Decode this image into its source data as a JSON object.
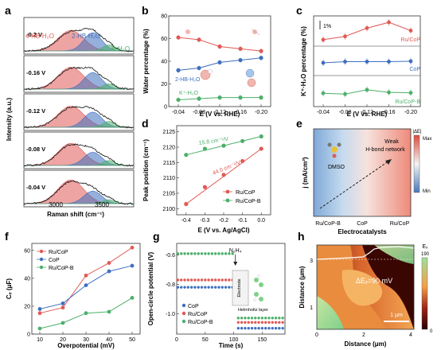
{
  "panels": {
    "a": "a",
    "b": "b",
    "c": "c",
    "d": "d",
    "e": "e",
    "f": "f",
    "g": "g",
    "h": "h"
  },
  "colors": {
    "red": "#e05a55",
    "blue": "#3f6fbf",
    "green": "#4caf6a",
    "dark": "#222222"
  },
  "chart_data": [
    {
      "panel": "a",
      "type": "area",
      "xlabel": "Raman shift (cm⁻¹)",
      "ylabel": "Intensity (a.u.)",
      "xticks": [
        "3000",
        "3500"
      ],
      "xlim": [
        2750,
        3850
      ],
      "peak_labels": [
        "4-HB-H₂O",
        "2-HB-H₂O",
        "K-H₂O"
      ],
      "peak_centers": [
        3220,
        3440,
        3600
      ],
      "spectra": [
        {
          "label": "-0.2 V",
          "amps": [
            0.62,
            0.55,
            0.18
          ]
        },
        {
          "label": "-0.16 V",
          "amps": [
            0.66,
            0.5,
            0.16
          ]
        },
        {
          "label": "-0.12 V",
          "amps": [
            0.64,
            0.46,
            0.18
          ]
        },
        {
          "label": "-0.08 V",
          "amps": [
            0.67,
            0.4,
            0.15
          ]
        },
        {
          "label": "-0.04 V",
          "amps": [
            0.72,
            0.38,
            0.12
          ]
        }
      ]
    },
    {
      "panel": "b",
      "type": "line",
      "xlabel": "E (V vs. RHE)",
      "ylabel": "Water percentage (%)",
      "x": [
        -0.04,
        -0.08,
        -0.12,
        -0.16,
        -0.2
      ],
      "xticks": [
        "-0.04",
        "-0.08",
        "-0.12",
        "-0.16",
        "-0.20"
      ],
      "yticks": [
        "0",
        "20",
        "40",
        "60",
        "80"
      ],
      "ylim": [
        0,
        80
      ],
      "series": [
        {
          "name": "4-HB-H₂O",
          "color": "#e05a55",
          "values": [
            61,
            59,
            53,
            51,
            49
          ]
        },
        {
          "name": "2-HB-H₂O",
          "color": "#3f6fbf",
          "values": [
            32,
            34,
            39,
            41,
            43
          ]
        },
        {
          "name": "K⁺-H₂O",
          "color": "#4caf6a",
          "values": [
            6,
            7,
            8,
            8,
            8
          ]
        }
      ]
    },
    {
      "panel": "c",
      "type": "line",
      "xlabel": "E (V vs. RHE)",
      "ylabel": "K⁺·H₂O percentage (%)",
      "scale_bar": "1%",
      "x": [
        -0.04,
        -0.08,
        -0.12,
        -0.16,
        -0.2
      ],
      "xticks": [
        "-0.04",
        "-0.08",
        "-0.12",
        "-0.16",
        "-0.20"
      ],
      "series": [
        {
          "name": "Ru/CoP",
          "color": "#e05a55",
          "values": [
            0.2,
            0.6,
            1.6,
            2.3,
            1.3
          ]
        },
        {
          "name": "CoP",
          "color": "#3f6fbf",
          "values": [
            0.0,
            0.15,
            0.15,
            0.15,
            0.2
          ]
        },
        {
          "name": "Ru/CoP-B",
          "color": "#4caf6a",
          "values": [
            0.0,
            -0.1,
            0.4,
            0.1,
            0.05
          ]
        }
      ]
    },
    {
      "panel": "d",
      "type": "scatter",
      "xlabel": "E (V vs. Ag/AgCl)",
      "ylabel": "Peak position (cm⁻¹)",
      "xticks": [
        "-0.4",
        "-0.3",
        "-0.2",
        "-0.1",
        "0.0"
      ],
      "yticks": [
        "2100",
        "2105",
        "2110",
        "2115",
        "2120",
        "2125"
      ],
      "xlim": [
        -0.45,
        0.05
      ],
      "ylim": [
        2098,
        2127
      ],
      "x": [
        -0.4,
        -0.3,
        -0.2,
        -0.1,
        0.0
      ],
      "series": [
        {
          "name": "Ru/CoP",
          "color": "#e05a55",
          "values": [
            2101.5,
            2107,
            2111,
            2115.5,
            2119.5
          ],
          "slope_label": "44.0 cm⁻¹/V"
        },
        {
          "name": "Ru/CoP-B",
          "color": "#4caf6a",
          "values": [
            2117.5,
            2119.5,
            2120.5,
            2122,
            2123.5
          ],
          "slope_label": "15.8 cm⁻¹/V"
        }
      ]
    },
    {
      "panel": "e",
      "type": "heatmap",
      "xlabel": "Electrocatalysts",
      "ylabel": "j (mA/cm²)",
      "categories": [
        "Ru/CoP-B",
        "CoP",
        "Ru/CoP"
      ],
      "colorbar_title": "|ΔE|",
      "colorbar_max": "Max",
      "colorbar_min": "Min",
      "annotations": [
        "DMSO",
        "Weak",
        "H-bond network"
      ]
    },
    {
      "panel": "f",
      "type": "line",
      "xlabel": "Overpotential (mV)",
      "ylabel": "Cₑ (μF)",
      "x": [
        10,
        20,
        30,
        40,
        50
      ],
      "xticks": [
        "10",
        "20",
        "30",
        "40",
        "50"
      ],
      "yticks": [
        "0",
        "20",
        "40",
        "60"
      ],
      "ylim": [
        0,
        65
      ],
      "series": [
        {
          "name": "Ru/CoP",
          "color": "#e05a55",
          "values": [
            15,
            19,
            42,
            51,
            62
          ]
        },
        {
          "name": "CoP",
          "color": "#3f6fbf",
          "values": [
            18,
            22,
            35,
            45,
            49
          ]
        },
        {
          "name": "Ru/CoP-B",
          "color": "#4caf6a",
          "values": [
            4,
            8,
            15,
            16,
            26
          ]
        }
      ]
    },
    {
      "panel": "g",
      "type": "scatter",
      "xlabel": "Time (s)",
      "ylabel": "Open-circle potential (V)",
      "xticks": [
        "0",
        "50",
        "100",
        "150"
      ],
      "yticks": [
        "-0.6",
        "-0.8",
        "-1.0"
      ],
      "xlim": [
        0,
        190
      ],
      "ylim": [
        -1.14,
        -0.52
      ],
      "event_label": "N₂H₄",
      "event_time": 103,
      "inset_labels": [
        "Electrode",
        "Helmholtz layer"
      ],
      "series": [
        {
          "name": "CoP",
          "color": "#3f6fbf",
          "before": -0.82,
          "after": -1.1
        },
        {
          "name": "Ru/CoP",
          "color": "#e05a55",
          "before": -0.77,
          "after": -1.06
        },
        {
          "name": "Ru/CoP-B",
          "color": "#4caf6a",
          "before": -0.59,
          "after": -1.03
        }
      ]
    },
    {
      "panel": "h",
      "type": "heatmap",
      "xlabel": "Distance (μm)",
      "ylabel": "Distance (μm)",
      "xticks": [
        "0",
        "2",
        "4"
      ],
      "yticks": [
        "1",
        "3"
      ],
      "annotation": "ΔEₓ=90 mV",
      "scale_bar": "1 μm",
      "colorbar_title": "Eₓ",
      "colorbar_max": "190",
      "colorbar_min": "0"
    }
  ]
}
